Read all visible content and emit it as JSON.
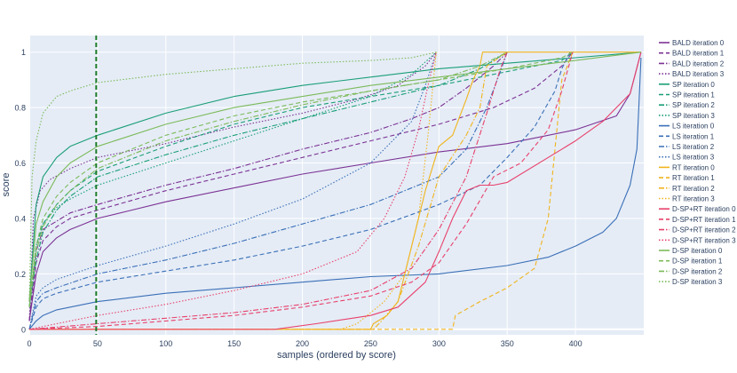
{
  "chart_data": {
    "type": "line",
    "title": "",
    "xlabel": "samples (ordered by score)",
    "ylabel": "score",
    "xlim": [
      0,
      450
    ],
    "ylim": [
      -0.02,
      1.06
    ],
    "x_ticks": [
      0,
      50,
      100,
      150,
      200,
      250,
      300,
      350,
      400
    ],
    "y_ticks": [
      0,
      0.2,
      0.4,
      0.6,
      0.8,
      1
    ],
    "grid": true,
    "legend_position": "right",
    "vertical_reference_line": {
      "x": 49,
      "color": "#1b7a2a",
      "style": "dash"
    },
    "colors": {
      "background": "#e5ecf6",
      "grid": "#ffffff",
      "BALD": "#7b3294",
      "SP": "#1a9e77",
      "LS": "#3a6fb7",
      "RT": "#f1b41c",
      "D-SP+RT": "#e8416b",
      "D-SP": "#7cba5a"
    },
    "series": [
      {
        "name": "BALD iteration 0",
        "color": "#7b3294",
        "dash": "solid",
        "x": [
          0,
          5,
          10,
          20,
          30,
          40,
          50,
          75,
          100,
          150,
          200,
          250,
          300,
          350,
          400,
          430,
          440,
          448
        ],
        "y": [
          0.03,
          0.2,
          0.28,
          0.33,
          0.36,
          0.38,
          0.4,
          0.43,
          0.46,
          0.51,
          0.56,
          0.6,
          0.64,
          0.67,
          0.72,
          0.77,
          0.85,
          1.0
        ]
      },
      {
        "name": "BALD iteration 1",
        "color": "#7b3294",
        "dash": "dash",
        "x": [
          0,
          5,
          10,
          20,
          30,
          50,
          100,
          150,
          200,
          250,
          300,
          340,
          370,
          390,
          398
        ],
        "y": [
          0.03,
          0.24,
          0.32,
          0.37,
          0.4,
          0.43,
          0.5,
          0.56,
          0.62,
          0.68,
          0.74,
          0.8,
          0.87,
          0.95,
          1.0
        ]
      },
      {
        "name": "BALD iteration 2",
        "color": "#7b3294",
        "dash": "dashdot",
        "x": [
          0,
          5,
          10,
          30,
          50,
          100,
          150,
          200,
          250,
          280,
          300,
          320,
          340,
          350
        ],
        "y": [
          0.03,
          0.28,
          0.36,
          0.42,
          0.45,
          0.52,
          0.58,
          0.65,
          0.71,
          0.76,
          0.8,
          0.87,
          0.95,
          1.0
        ]
      },
      {
        "name": "BALD iteration 3",
        "color": "#7b3294",
        "dash": "dot",
        "x": [
          0,
          3,
          8,
          15,
          30,
          50,
          100,
          150,
          200,
          240,
          270,
          290,
          298
        ],
        "y": [
          0.03,
          0.4,
          0.5,
          0.54,
          0.58,
          0.62,
          0.67,
          0.73,
          0.78,
          0.83,
          0.88,
          0.95,
          1.0
        ]
      },
      {
        "name": "SP iteration 0",
        "color": "#1a9e77",
        "dash": "solid",
        "x": [
          0,
          5,
          10,
          20,
          30,
          50,
          100,
          150,
          200,
          250,
          300,
          350,
          400,
          448
        ],
        "y": [
          0.1,
          0.45,
          0.55,
          0.62,
          0.66,
          0.7,
          0.78,
          0.84,
          0.88,
          0.91,
          0.94,
          0.96,
          0.98,
          1.0
        ]
      },
      {
        "name": "SP iteration 1",
        "color": "#1a9e77",
        "dash": "dash",
        "x": [
          0,
          5,
          10,
          20,
          30,
          50,
          100,
          150,
          200,
          250,
          300,
          350,
          390,
          398
        ],
        "y": [
          0.08,
          0.3,
          0.38,
          0.45,
          0.5,
          0.57,
          0.66,
          0.74,
          0.8,
          0.84,
          0.88,
          0.93,
          0.97,
          1.0
        ]
      },
      {
        "name": "SP iteration 2",
        "color": "#1a9e77",
        "dash": "dashdot",
        "x": [
          0,
          5,
          10,
          20,
          30,
          50,
          100,
          150,
          200,
          250,
          300,
          330,
          350
        ],
        "y": [
          0.08,
          0.25,
          0.35,
          0.43,
          0.48,
          0.55,
          0.63,
          0.7,
          0.76,
          0.82,
          0.88,
          0.94,
          1.0
        ]
      },
      {
        "name": "SP iteration 3",
        "color": "#1a9e77",
        "dash": "dot",
        "x": [
          0,
          5,
          10,
          20,
          30,
          50,
          100,
          150,
          200,
          250,
          280,
          298
        ],
        "y": [
          0.08,
          0.3,
          0.38,
          0.44,
          0.47,
          0.52,
          0.6,
          0.68,
          0.76,
          0.84,
          0.92,
          1.0
        ]
      },
      {
        "name": "LS iteration 0",
        "color": "#3a6fb7",
        "dash": "solid",
        "x": [
          0,
          5,
          10,
          20,
          50,
          100,
          150,
          200,
          250,
          300,
          350,
          380,
          400,
          420,
          430,
          440,
          445,
          448
        ],
        "y": [
          0.0,
          0.03,
          0.05,
          0.07,
          0.1,
          0.13,
          0.15,
          0.17,
          0.19,
          0.2,
          0.23,
          0.26,
          0.3,
          0.35,
          0.4,
          0.52,
          0.65,
          0.98
        ]
      },
      {
        "name": "LS iteration 1",
        "color": "#3a6fb7",
        "dash": "dash",
        "x": [
          0,
          5,
          10,
          20,
          50,
          100,
          150,
          200,
          250,
          300,
          330,
          350,
          370,
          385,
          390,
          396
        ],
        "y": [
          0.0,
          0.08,
          0.11,
          0.13,
          0.17,
          0.21,
          0.25,
          0.3,
          0.36,
          0.45,
          0.52,
          0.62,
          0.73,
          0.86,
          0.94,
          1.0
        ]
      },
      {
        "name": "LS iteration 2",
        "color": "#3a6fb7",
        "dash": "dashdot",
        "x": [
          0,
          5,
          10,
          20,
          50,
          100,
          150,
          200,
          250,
          300,
          320,
          335,
          345,
          350
        ],
        "y": [
          0.0,
          0.1,
          0.13,
          0.15,
          0.2,
          0.25,
          0.31,
          0.38,
          0.45,
          0.55,
          0.65,
          0.8,
          0.93,
          1.0
        ]
      },
      {
        "name": "LS iteration 3",
        "color": "#3a6fb7",
        "dash": "dot",
        "x": [
          0,
          5,
          10,
          20,
          50,
          100,
          150,
          200,
          250,
          280,
          290,
          298
        ],
        "y": [
          0.0,
          0.12,
          0.15,
          0.18,
          0.23,
          0.3,
          0.38,
          0.47,
          0.6,
          0.75,
          0.88,
          1.0
        ]
      },
      {
        "name": "RT iteration 0",
        "color": "#f1b41c",
        "dash": "solid",
        "x": [
          0,
          250,
          252,
          262,
          270,
          280,
          285,
          290,
          300,
          310,
          320,
          325,
          330,
          332,
          448
        ],
        "y": [
          0.0,
          0.0,
          0.02,
          0.05,
          0.1,
          0.3,
          0.4,
          0.5,
          0.66,
          0.7,
          0.83,
          0.9,
          0.95,
          1.0,
          1.0
        ]
      },
      {
        "name": "RT iteration 1",
        "color": "#f1b41c",
        "dash": "dash",
        "x": [
          0,
          310,
          312,
          330,
          350,
          370,
          380,
          385,
          390,
          398
        ],
        "y": [
          0.0,
          0.0,
          0.05,
          0.1,
          0.15,
          0.22,
          0.4,
          0.65,
          0.9,
          1.0
        ]
      },
      {
        "name": "RT iteration 2",
        "color": "#f1b41c",
        "dash": "dashdot",
        "x": [
          0,
          252,
          258,
          270,
          285,
          300,
          320,
          330,
          335,
          350
        ],
        "y": [
          0.0,
          0.0,
          0.03,
          0.1,
          0.3,
          0.55,
          0.7,
          0.8,
          0.95,
          1.0
        ]
      },
      {
        "name": "RT iteration 3",
        "color": "#f1b41c",
        "dash": "dot",
        "x": [
          0,
          228,
          240,
          260,
          275,
          285,
          292,
          298
        ],
        "y": [
          0.0,
          0.0,
          0.02,
          0.1,
          0.2,
          0.4,
          0.7,
          1.0
        ]
      },
      {
        "name": "D-SP+RT iteration 0",
        "color": "#e8416b",
        "dash": "solid",
        "x": [
          0,
          180,
          210,
          250,
          270,
          290,
          300,
          310,
          320,
          330,
          340,
          350,
          380,
          400,
          420,
          440,
          448
        ],
        "y": [
          0.0,
          0.0,
          0.02,
          0.05,
          0.08,
          0.17,
          0.28,
          0.4,
          0.5,
          0.52,
          0.52,
          0.53,
          0.62,
          0.68,
          0.75,
          0.85,
          1.0
        ]
      },
      {
        "name": "D-SP+RT iteration 1",
        "color": "#e8416b",
        "dash": "dash",
        "x": [
          0,
          50,
          100,
          150,
          200,
          250,
          280,
          300,
          320,
          340,
          360,
          380,
          390,
          398
        ],
        "y": [
          0.0,
          0.01,
          0.03,
          0.05,
          0.08,
          0.12,
          0.17,
          0.24,
          0.38,
          0.55,
          0.6,
          0.72,
          0.86,
          1.0
        ]
      },
      {
        "name": "D-SP+RT iteration 2",
        "color": "#e8416b",
        "dash": "dashdot",
        "x": [
          0,
          50,
          100,
          150,
          200,
          250,
          280,
          300,
          320,
          335,
          345,
          350
        ],
        "y": [
          0.0,
          0.02,
          0.04,
          0.06,
          0.09,
          0.14,
          0.22,
          0.36,
          0.55,
          0.78,
          0.94,
          1.0
        ]
      },
      {
        "name": "D-SP+RT iteration 3",
        "color": "#e8416b",
        "dash": "dot",
        "x": [
          0,
          20,
          50,
          100,
          150,
          200,
          240,
          260,
          275,
          285,
          292,
          298
        ],
        "y": [
          0.0,
          0.02,
          0.05,
          0.09,
          0.14,
          0.2,
          0.28,
          0.4,
          0.55,
          0.72,
          0.88,
          1.0
        ]
      },
      {
        "name": "D-SP iteration 0",
        "color": "#7cba5a",
        "dash": "solid",
        "x": [
          0,
          5,
          10,
          20,
          30,
          50,
          100,
          150,
          200,
          250,
          300,
          350,
          400,
          448
        ],
        "y": [
          0.1,
          0.38,
          0.46,
          0.55,
          0.6,
          0.66,
          0.74,
          0.8,
          0.84,
          0.88,
          0.91,
          0.94,
          0.97,
          1.0
        ]
      },
      {
        "name": "D-SP iteration 1",
        "color": "#7cba5a",
        "dash": "dash",
        "x": [
          0,
          5,
          10,
          20,
          30,
          50,
          100,
          150,
          200,
          250,
          300,
          350,
          390,
          398
        ],
        "y": [
          0.08,
          0.3,
          0.4,
          0.48,
          0.53,
          0.6,
          0.7,
          0.77,
          0.82,
          0.86,
          0.9,
          0.94,
          0.98,
          1.0
        ]
      },
      {
        "name": "D-SP iteration 2",
        "color": "#7cba5a",
        "dash": "dashdot",
        "x": [
          0,
          5,
          10,
          20,
          30,
          50,
          100,
          150,
          200,
          250,
          300,
          330,
          350
        ],
        "y": [
          0.08,
          0.28,
          0.37,
          0.45,
          0.5,
          0.58,
          0.68,
          0.75,
          0.81,
          0.86,
          0.9,
          0.95,
          1.0
        ]
      },
      {
        "name": "D-SP iteration 3",
        "color": "#7cba5a",
        "dash": "dot",
        "x": [
          0,
          2,
          5,
          10,
          20,
          30,
          50,
          100,
          150,
          200,
          250,
          280,
          298
        ],
        "y": [
          0.1,
          0.55,
          0.68,
          0.78,
          0.84,
          0.86,
          0.89,
          0.92,
          0.94,
          0.96,
          0.97,
          0.98,
          1.0
        ]
      }
    ]
  }
}
